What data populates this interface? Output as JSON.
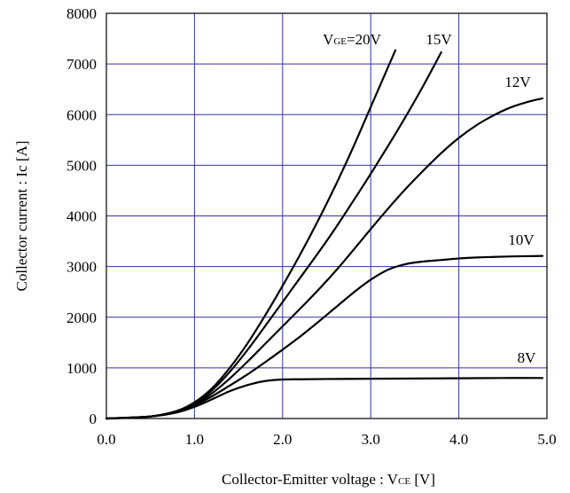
{
  "chart_data": {
    "type": "line",
    "xlabel_main": "Collector-Emitter voltage : V",
    "xlabel_sub": "CE",
    "xlabel_unit": " [V]",
    "ylabel": "Collector current : Ic [A]",
    "xlim": [
      0,
      5
    ],
    "ylim": [
      0,
      8000
    ],
    "xticks": [
      "0.0",
      "1.0",
      "2.0",
      "3.0",
      "4.0",
      "5.0"
    ],
    "yticks": [
      "0",
      "1000",
      "2000",
      "3000",
      "4000",
      "5000",
      "6000",
      "7000",
      "8000"
    ],
    "grid": true,
    "grid_color": "#3333aa",
    "line_color": "#000000",
    "series": [
      {
        "name": "20V",
        "label_prefix": "V",
        "label_sub": "GE",
        "label_text": "=20V",
        "x": [
          0,
          0.5,
          0.8,
          1.0,
          1.2,
          1.4,
          1.6,
          1.8,
          2.0,
          2.2,
          2.4,
          2.6,
          2.8,
          3.0,
          3.2,
          3.28
        ],
        "y": [
          0,
          40,
          150,
          320,
          600,
          1000,
          1480,
          2030,
          2620,
          3240,
          3900,
          4600,
          5350,
          6150,
          6950,
          7270
        ]
      },
      {
        "name": "15V",
        "label_text": "15V",
        "x": [
          0,
          0.5,
          0.8,
          1.0,
          1.2,
          1.4,
          1.6,
          1.8,
          2.0,
          2.2,
          2.4,
          2.6,
          2.8,
          3.0,
          3.2,
          3.4,
          3.6,
          3.8
        ],
        "y": [
          0,
          40,
          145,
          300,
          560,
          920,
          1350,
          1820,
          2300,
          2780,
          3260,
          3760,
          4290,
          4830,
          5390,
          5970,
          6580,
          7230
        ]
      },
      {
        "name": "12V",
        "label_text": "12V",
        "x": [
          0,
          0.5,
          0.8,
          1.0,
          1.2,
          1.4,
          1.6,
          1.8,
          2.0,
          2.2,
          2.4,
          2.6,
          2.8,
          3.0,
          3.2,
          3.4,
          3.6,
          3.8,
          4.0,
          4.2,
          4.4,
          4.6,
          4.8,
          4.95
        ],
        "y": [
          0,
          40,
          140,
          280,
          500,
          790,
          1120,
          1470,
          1820,
          2170,
          2530,
          2910,
          3320,
          3740,
          4150,
          4540,
          4900,
          5240,
          5540,
          5790,
          5990,
          6150,
          6260,
          6320
        ]
      },
      {
        "name": "10V",
        "label_text": "10V",
        "x": [
          0,
          0.5,
          0.8,
          1.0,
          1.2,
          1.4,
          1.6,
          1.8,
          2.0,
          2.2,
          2.4,
          2.6,
          2.8,
          3.0,
          3.2,
          3.4,
          3.6,
          3.8,
          4.0,
          4.2,
          4.4,
          4.6,
          4.8,
          4.95
        ],
        "y": [
          0,
          40,
          130,
          260,
          440,
          650,
          870,
          1110,
          1360,
          1620,
          1900,
          2190,
          2480,
          2740,
          2940,
          3050,
          3100,
          3130,
          3160,
          3180,
          3190,
          3200,
          3205,
          3210
        ]
      },
      {
        "name": "8V",
        "label_text": "8V",
        "x": [
          0,
          0.5,
          0.8,
          1.0,
          1.2,
          1.4,
          1.6,
          1.8,
          2.0,
          2.2,
          2.5,
          3.0,
          3.5,
          4.0,
          4.5,
          4.95
        ],
        "y": [
          0,
          40,
          120,
          230,
          380,
          540,
          660,
          740,
          770,
          775,
          780,
          785,
          790,
          795,
          800,
          800
        ]
      }
    ]
  }
}
